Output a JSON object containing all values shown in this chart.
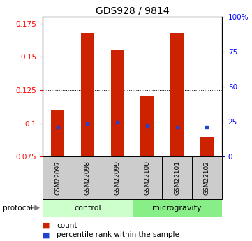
{
  "title": "GDS928 / 9814",
  "samples": [
    "GSM22097",
    "GSM22098",
    "GSM22099",
    "GSM22100",
    "GSM22101",
    "GSM22102"
  ],
  "red_values": [
    0.11,
    0.168,
    0.155,
    0.12,
    0.168,
    0.09
  ],
  "blue_values": [
    0.097,
    0.1,
    0.101,
    0.098,
    0.097,
    0.097
  ],
  "ylim": [
    0.075,
    0.18
  ],
  "yticks_left": [
    0.075,
    0.1,
    0.125,
    0.15,
    0.175
  ],
  "yticks_right_pct": [
    0,
    25,
    50,
    75,
    100
  ],
  "bar_color": "#cc2200",
  "blue_color": "#2244cc",
  "bar_width": 0.45,
  "control_label": "control",
  "microgravity_label": "microgravity",
  "protocol_label": "protocol",
  "legend_red": "count",
  "legend_blue": "percentile rank within the sample",
  "control_color": "#ccffcc",
  "microgravity_color": "#88ee88",
  "sample_box_color": "#cccccc",
  "title_fontsize": 10,
  "tick_fontsize": 7.5,
  "label_fontsize": 8
}
